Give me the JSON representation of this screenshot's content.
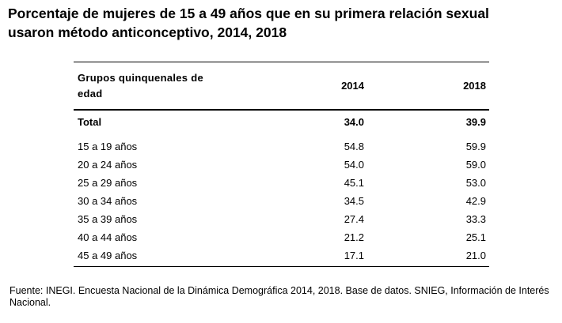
{
  "header": {
    "title": [
      "Porcentaje de mujeres de 15 a 49 años que en su primera relación sexual",
      "usaron método anticonceptivo, 2014, 2018"
    ]
  },
  "table": {
    "columns": [
      "Grupos quinquenales de edad",
      "2014",
      "2018"
    ],
    "total": [
      "Total",
      "34.0",
      "39.9"
    ],
    "rows": [
      [
        "15 a 19 años",
        "54.8",
        "59.9"
      ],
      [
        "20 a 24 años",
        "54.0",
        "59.0"
      ],
      [
        "25 a 29 años",
        "45.1",
        "53.0"
      ],
      [
        "30 a 34 años",
        "34.5",
        "42.9"
      ],
      [
        "35 a 39 años",
        "27.4",
        "33.3"
      ],
      [
        "40 a 44 años",
        "21.2",
        "25.1"
      ],
      [
        "45 a 49 años",
        "17.1",
        "21.0"
      ]
    ]
  },
  "footer": {
    "source": "Fuente: INEGI. Encuesta Nacional de la Dinámica Demográfica 2014, 2018. Base de datos. SNIEG, Información de Interés Nacional."
  }
}
